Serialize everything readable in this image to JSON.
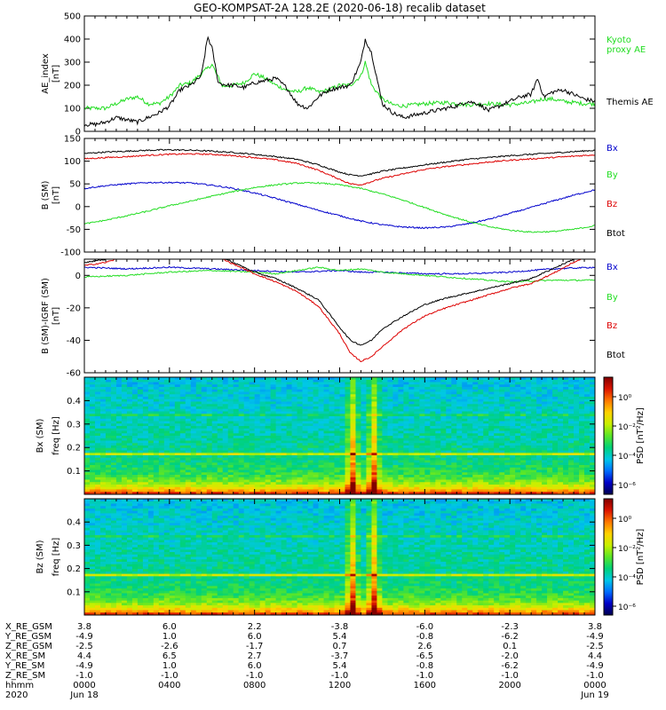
{
  "title": "GEO-KOMPSAT-2A 128.2E (2020-06-18) recalib dataset",
  "colors": {
    "black": "#000000",
    "green": "#22dd22",
    "blue": "#0000cc",
    "red": "#dd0000",
    "kyoto": "#22dd22"
  },
  "chart_data": [
    {
      "type": "line",
      "panel": "ae_index",
      "ylabel": "AE_index",
      "yunit": "[nT]",
      "ylim": [
        0,
        500
      ],
      "yticks": [
        "0",
        "100",
        "200",
        "300",
        "400",
        "500"
      ],
      "xlim": [
        0,
        24
      ],
      "legend": [
        {
          "name": "Kyoto proxy AE",
          "lines": [
            "Kyoto",
            "proxy AE"
          ],
          "color": "#22dd22"
        },
        {
          "name": "Themis AE",
          "lines": [
            "Themis AE"
          ],
          "color": "#000000"
        }
      ],
      "series": [
        {
          "name": "Kyoto proxy AE",
          "color": "#22dd22",
          "x": [
            0,
            1,
            2,
            2.5,
            3,
            3.5,
            4,
            4.5,
            5,
            5.5,
            6,
            6.2,
            6.5,
            7,
            7.5,
            8,
            8.5,
            9,
            9.5,
            10,
            10.5,
            11,
            11.5,
            12,
            12.5,
            13,
            13.2,
            13.5,
            14,
            14.5,
            15,
            16,
            17,
            18,
            19,
            20,
            21,
            21.5,
            22,
            22.5,
            23,
            23.5,
            24
          ],
          "y": [
            100,
            100,
            140,
            150,
            120,
            120,
            150,
            200,
            210,
            250,
            290,
            250,
            195,
            200,
            210,
            250,
            230,
            200,
            180,
            170,
            190,
            170,
            180,
            200,
            200,
            240,
            300,
            200,
            140,
            115,
            110,
            120,
            125,
            115,
            120,
            115,
            125,
            140,
            140,
            130,
            125,
            120,
            120
          ]
        },
        {
          "name": "Themis AE",
          "color": "#000000",
          "x": [
            0,
            0.5,
            1,
            1.5,
            2,
            2.5,
            3,
            3.5,
            4,
            4.5,
            5,
            5.5,
            5.8,
            6,
            6.3,
            6.7,
            7,
            7.5,
            8,
            8.5,
            9,
            9.5,
            10,
            10.5,
            11,
            11.5,
            12,
            12.5,
            13,
            13.2,
            13.5,
            14,
            14.5,
            15,
            15.5,
            16,
            16.5,
            17,
            17.5,
            18,
            18.5,
            19,
            19.5,
            20,
            20.5,
            21,
            21.3,
            21.6,
            22,
            22.5,
            23,
            23.5,
            24
          ],
          "y": [
            30,
            30,
            40,
            60,
            50,
            40,
            60,
            80,
            110,
            180,
            200,
            240,
            410,
            360,
            210,
            200,
            200,
            190,
            210,
            220,
            230,
            190,
            120,
            100,
            150,
            180,
            190,
            200,
            300,
            400,
            340,
            120,
            80,
            60,
            70,
            80,
            90,
            100,
            110,
            130,
            120,
            90,
            110,
            130,
            150,
            160,
            230,
            150,
            170,
            180,
            160,
            140,
            130
          ]
        }
      ]
    },
    {
      "type": "line",
      "panel": "b_sm",
      "ylabel": "B (SM)",
      "yunit": "[nT]",
      "ylim": [
        -100,
        150
      ],
      "yticks": [
        "-100",
        "-50",
        "0",
        "50",
        "100",
        "150"
      ],
      "xlim": [
        0,
        24
      ],
      "legend": [
        {
          "name": "Bx",
          "lines": [
            "Bx"
          ],
          "color": "#0000cc"
        },
        {
          "name": "By",
          "lines": [
            "By"
          ],
          "color": "#22dd22"
        },
        {
          "name": "Bz",
          "lines": [
            "Bz"
          ],
          "color": "#dd0000"
        },
        {
          "name": "Btot",
          "lines": [
            "Btot"
          ],
          "color": "#000000"
        }
      ],
      "series": [
        {
          "name": "Btot",
          "color": "#000000",
          "x": [
            0,
            1,
            2,
            3,
            4,
            5,
            6,
            7,
            8,
            9,
            10,
            11,
            12,
            12.5,
            13,
            13.5,
            14,
            15,
            16,
            17,
            18,
            19,
            20,
            21,
            22,
            23,
            24
          ],
          "y": [
            117,
            120,
            122,
            124,
            125,
            124,
            122,
            119,
            115,
            110,
            104,
            92,
            76,
            70,
            68,
            72,
            78,
            85,
            92,
            98,
            104,
            108,
            112,
            115,
            118,
            121,
            124
          ]
        },
        {
          "name": "Bz",
          "color": "#dd0000",
          "x": [
            0,
            1,
            2,
            3,
            4,
            5,
            6,
            7,
            8,
            9,
            10,
            11,
            12,
            12.5,
            13,
            13.5,
            14,
            15,
            16,
            17,
            18,
            19,
            20,
            21,
            22,
            23,
            24
          ],
          "y": [
            105,
            108,
            110,
            113,
            115,
            116,
            115,
            112,
            108,
            103,
            95,
            80,
            60,
            50,
            48,
            55,
            62,
            72,
            82,
            88,
            93,
            98,
            102,
            105,
            108,
            111,
            114
          ]
        },
        {
          "name": "Bx",
          "color": "#0000cc",
          "x": [
            0,
            1,
            2,
            3,
            4,
            5,
            6,
            7,
            8,
            9,
            10,
            11,
            12,
            13,
            14,
            15,
            16,
            17,
            18,
            19,
            20,
            21,
            22,
            23,
            24
          ],
          "y": [
            40,
            46,
            50,
            53,
            53,
            52,
            47,
            40,
            30,
            18,
            5,
            -8,
            -20,
            -32,
            -40,
            -45,
            -47,
            -45,
            -38,
            -28,
            -15,
            -2,
            12,
            25,
            37
          ]
        },
        {
          "name": "By",
          "color": "#22dd22",
          "x": [
            0,
            1,
            2,
            3,
            4,
            5,
            6,
            7,
            8,
            9,
            10,
            11,
            12,
            13,
            14,
            15,
            16,
            17,
            18,
            19,
            20,
            21,
            22,
            23,
            24
          ],
          "y": [
            -38,
            -30,
            -20,
            -10,
            2,
            12,
            23,
            33,
            42,
            48,
            52,
            52,
            48,
            40,
            28,
            14,
            -2,
            -18,
            -32,
            -44,
            -52,
            -56,
            -55,
            -50,
            -42
          ]
        }
      ]
    },
    {
      "type": "line",
      "panel": "b_sm_igrf",
      "ylabel": "B (SM)-IGRF (SM)",
      "yunit": "[nT]",
      "ylim": [
        -60,
        10
      ],
      "yticks": [
        "-60",
        "-40",
        "-20",
        "0"
      ],
      "xlim": [
        0,
        24
      ],
      "legend": [
        {
          "name": "Bx",
          "lines": [
            "Bx"
          ],
          "color": "#0000cc"
        },
        {
          "name": "By",
          "lines": [
            "By"
          ],
          "color": "#22dd22"
        },
        {
          "name": "Bz",
          "lines": [
            "Bz"
          ],
          "color": "#dd0000"
        },
        {
          "name": "Btot",
          "lines": [
            "Btot"
          ],
          "color": "#000000"
        }
      ],
      "series": [
        {
          "name": "Bx",
          "color": "#0000cc",
          "x": [
            0,
            2,
            4,
            6,
            8,
            10,
            12,
            13,
            14,
            16,
            18,
            20,
            22,
            24
          ],
          "y": [
            5,
            4,
            5,
            4,
            3,
            2,
            3,
            2,
            2,
            1,
            1,
            2,
            4,
            5
          ]
        },
        {
          "name": "By",
          "color": "#22dd22",
          "x": [
            0,
            2,
            4,
            6,
            8,
            9,
            10,
            11,
            12,
            13,
            14,
            16,
            18,
            20,
            22,
            24
          ],
          "y": [
            -1,
            0,
            2,
            3,
            2,
            1,
            3,
            5,
            3,
            4,
            2,
            0,
            -2,
            -4,
            -3,
            -3
          ]
        },
        {
          "name": "Btot",
          "color": "#000000",
          "x": [
            0,
            1,
            2,
            3,
            4,
            5,
            6,
            7,
            8,
            9,
            10,
            11,
            12,
            12.5,
            13,
            13.5,
            14,
            15,
            16,
            17,
            18,
            19,
            20,
            21,
            22,
            23,
            24
          ],
          "y": [
            8,
            10,
            14,
            16,
            18,
            18,
            14,
            8,
            2,
            -2,
            -8,
            -15,
            -32,
            -40,
            -43,
            -40,
            -33,
            -25,
            -18,
            -14,
            -11,
            -8,
            -5,
            -2,
            4,
            10,
            15
          ]
        },
        {
          "name": "Bz",
          "color": "#dd0000",
          "x": [
            0,
            1,
            2,
            3,
            4,
            5,
            6,
            7,
            8,
            9,
            10,
            11,
            12,
            12.5,
            13,
            13.5,
            14,
            15,
            16,
            17,
            18,
            19,
            20,
            21,
            22,
            23,
            24
          ],
          "y": [
            6,
            8,
            12,
            14,
            16,
            17,
            13,
            7,
            1,
            -4,
            -10,
            -19,
            -36,
            -48,
            -53,
            -50,
            -44,
            -33,
            -25,
            -20,
            -16,
            -12,
            -8,
            -5,
            1,
            8,
            14
          ]
        }
      ]
    },
    {
      "type": "heatmap",
      "panel": "bx_psd",
      "ylabel": "Bx (SM)",
      "yunit": "freq [Hz]",
      "ylim": [
        0,
        0.5
      ],
      "yticks": [
        "0.1",
        "0.2",
        "0.3",
        "0.4"
      ],
      "colorbar": {
        "label": "PSD [nT²/Hz]",
        "ticks": [
          "10⁰",
          "10⁻²",
          "10⁻⁴",
          "10⁻⁶"
        ]
      },
      "features": {
        "line_freq_hz": 0.17,
        "bursts_hours": [
          12.6,
          13.6
        ]
      }
    },
    {
      "type": "heatmap",
      "panel": "bz_psd",
      "ylabel": "Bz (SM)",
      "yunit": "freq [Hz]",
      "ylim": [
        0,
        0.5
      ],
      "yticks": [
        "0.1",
        "0.2",
        "0.3",
        "0.4"
      ],
      "colorbar": {
        "label": "PSD [nT²/Hz]",
        "ticks": [
          "10⁰",
          "10⁻²",
          "10⁻⁴",
          "10⁻⁶"
        ]
      },
      "features": {
        "line_freq_hz": 0.17,
        "bursts_hours": [
          12.6,
          13.6
        ]
      }
    }
  ],
  "ephemeris": {
    "labels": [
      "X_RE_GSM",
      "Y_RE_GSM",
      "Z_RE_GSM",
      "X_RE_SM",
      "Y_RE_SM",
      "Z_RE_SM",
      "hhmm",
      "2020"
    ],
    "columns": [
      {
        "hours": 0,
        "values": [
          "3.8",
          "-4.9",
          "-2.5",
          "4.4",
          "-4.9",
          "-1.0",
          "0000",
          "Jun 18"
        ]
      },
      {
        "hours": 4,
        "values": [
          "6.0",
          "1.0",
          "-2.6",
          "6.5",
          "1.0",
          "-1.0",
          "0400",
          ""
        ]
      },
      {
        "hours": 8,
        "values": [
          "2.2",
          "6.0",
          "-1.7",
          "2.7",
          "6.0",
          "-1.0",
          "0800",
          ""
        ]
      },
      {
        "hours": 12,
        "values": [
          "-3.8",
          "5.4",
          "0.7",
          "-3.7",
          "5.4",
          "-1.0",
          "1200",
          ""
        ]
      },
      {
        "hours": 16,
        "values": [
          "-6.0",
          "-0.8",
          "2.6",
          "-6.5",
          "-0.8",
          "-1.0",
          "1600",
          ""
        ]
      },
      {
        "hours": 20,
        "values": [
          "-2.3",
          "-6.2",
          "0.1",
          "-2.0",
          "-6.2",
          "-1.0",
          "2000",
          ""
        ]
      },
      {
        "hours": 24,
        "values": [
          "3.8",
          "-4.9",
          "-2.5",
          "4.4",
          "-4.9",
          "-1.0",
          "0000",
          "Jun 19"
        ]
      }
    ]
  }
}
